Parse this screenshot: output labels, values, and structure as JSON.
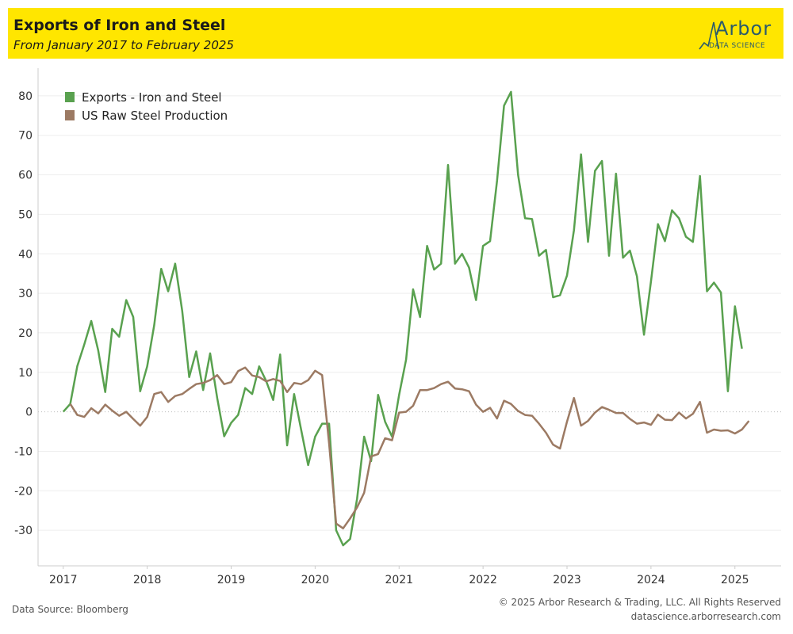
{
  "header": {
    "title": "Exports of Iron and Steel",
    "subtitle": "From January 2017 to February 2025",
    "logo_name": "Arbor",
    "logo_sub": "DATA SCIENCE",
    "background_color": "#ffe600"
  },
  "footer": {
    "source": "Data Source: Bloomberg",
    "copyright": "© 2025 Arbor Research & Trading, LLC. All Rights Reserved",
    "website": "datascience.arborresearch.com"
  },
  "chart_data": {
    "type": "line",
    "title": "Exports of Iron and Steel",
    "subtitle": "From January 2017 to February 2025",
    "xlabel": "",
    "ylabel": "",
    "x_ticks": [
      "2017",
      "2018",
      "2019",
      "2020",
      "2021",
      "2022",
      "2023",
      "2024",
      "2025"
    ],
    "y_ticks": [
      -30,
      -20,
      -10,
      0,
      10,
      20,
      30,
      40,
      50,
      60,
      70,
      80
    ],
    "ylim": [
      -39,
      87
    ],
    "xlim": [
      2016.7,
      2025.55
    ],
    "grid": true,
    "zero_line": "dotted",
    "legend_position": "top-left",
    "series": [
      {
        "name": "Exports - Iron and Steel",
        "color": "#59a14f",
        "points": [
          [
            "2017-01",
            0
          ],
          [
            "2017-02",
            2
          ],
          [
            "2017-03",
            11.5
          ],
          [
            "2017-04",
            17
          ],
          [
            "2017-05",
            23
          ],
          [
            "2017-06",
            15.5
          ],
          [
            "2017-07",
            5
          ],
          [
            "2017-08",
            21
          ],
          [
            "2017-09",
            19
          ],
          [
            "2017-10",
            28.3
          ],
          [
            "2017-11",
            24
          ],
          [
            "2017-12",
            5.2
          ],
          [
            "2018-01",
            11.5
          ],
          [
            "2018-02",
            22
          ],
          [
            "2018-03",
            36.2
          ],
          [
            "2018-04",
            30.5
          ],
          [
            "2018-05",
            37.5
          ],
          [
            "2018-06",
            25.5
          ],
          [
            "2018-07",
            8.8
          ],
          [
            "2018-08",
            15.3
          ],
          [
            "2018-09",
            5.5
          ],
          [
            "2018-10",
            14.8
          ],
          [
            "2018-11",
            3.5
          ],
          [
            "2018-12",
            -6.2
          ],
          [
            "2019-01",
            -2.8
          ],
          [
            "2019-02",
            -0.8
          ],
          [
            "2019-03",
            6
          ],
          [
            "2019-04",
            4.5
          ],
          [
            "2019-05",
            11.5
          ],
          [
            "2019-06",
            7.8
          ],
          [
            "2019-07",
            3
          ],
          [
            "2019-08",
            14.5
          ],
          [
            "2019-09",
            -8.5
          ],
          [
            "2019-10",
            4.5
          ],
          [
            "2019-11",
            -4.5
          ],
          [
            "2019-12",
            -13.5
          ],
          [
            "2020-01",
            -6.3
          ],
          [
            "2020-02",
            -3
          ],
          [
            "2020-03",
            -3
          ],
          [
            "2020-04",
            -30
          ],
          [
            "2020-05",
            -33.8
          ],
          [
            "2020-06",
            -32.2
          ],
          [
            "2020-07",
            -22
          ],
          [
            "2020-08",
            -6.3
          ],
          [
            "2020-09",
            -12.5
          ],
          [
            "2020-10",
            4.3
          ],
          [
            "2020-11",
            -2.5
          ],
          [
            "2020-12",
            -6.3
          ],
          [
            "2021-01",
            4.3
          ],
          [
            "2021-02",
            13.2
          ],
          [
            "2021-03",
            31
          ],
          [
            "2021-04",
            24
          ],
          [
            "2021-05",
            42
          ],
          [
            "2021-06",
            36
          ],
          [
            "2021-07",
            37.5
          ],
          [
            "2021-08",
            62.5
          ],
          [
            "2021-09",
            37.5
          ],
          [
            "2021-10",
            40
          ],
          [
            "2021-11",
            36.5
          ],
          [
            "2021-12",
            28.3
          ],
          [
            "2022-01",
            42
          ],
          [
            "2022-02",
            43.2
          ],
          [
            "2022-03",
            58.5
          ],
          [
            "2022-04",
            77.5
          ],
          [
            "2022-05",
            81
          ],
          [
            "2022-06",
            60
          ],
          [
            "2022-07",
            49
          ],
          [
            "2022-08",
            48.8
          ],
          [
            "2022-09",
            39.5
          ],
          [
            "2022-10",
            41
          ],
          [
            "2022-11",
            29
          ],
          [
            "2022-12",
            29.5
          ],
          [
            "2023-01",
            34.5
          ],
          [
            "2023-02",
            46
          ],
          [
            "2023-03",
            65.2
          ],
          [
            "2023-04",
            43
          ],
          [
            "2023-05",
            61
          ],
          [
            "2023-06",
            63.5
          ],
          [
            "2023-07",
            39.5
          ],
          [
            "2023-08",
            60.3
          ],
          [
            "2023-09",
            39
          ],
          [
            "2023-10",
            40.8
          ],
          [
            "2023-11",
            34.3
          ],
          [
            "2023-12",
            19.5
          ],
          [
            "2024-01",
            33
          ],
          [
            "2024-02",
            47.5
          ],
          [
            "2024-03",
            43.2
          ],
          [
            "2024-04",
            51
          ],
          [
            "2024-05",
            49
          ],
          [
            "2024-06",
            44.3
          ],
          [
            "2024-07",
            43
          ],
          [
            "2024-08",
            59.7
          ],
          [
            "2024-09",
            30.5
          ],
          [
            "2024-10",
            32.7
          ],
          [
            "2024-11",
            30.2
          ],
          [
            "2024-12",
            5.2
          ],
          [
            "2025-01",
            26.7
          ],
          [
            "2025-02",
            16
          ]
        ]
      },
      {
        "name": "US Raw Steel Production",
        "color": "#9c7a63",
        "points": [
          [
            "2017-02",
            2
          ],
          [
            "2017-03",
            -0.8
          ],
          [
            "2017-04",
            -1.3
          ],
          [
            "2017-05",
            0.9
          ],
          [
            "2017-06",
            -0.4
          ],
          [
            "2017-07",
            1.8
          ],
          [
            "2017-08",
            0.3
          ],
          [
            "2017-09",
            -1
          ],
          [
            "2017-10",
            0
          ],
          [
            "2017-11",
            -1.8
          ],
          [
            "2017-12",
            -3.5
          ],
          [
            "2018-01",
            -1.3
          ],
          [
            "2018-02",
            4.5
          ],
          [
            "2018-03",
            5
          ],
          [
            "2018-04",
            2.5
          ],
          [
            "2018-05",
            4
          ],
          [
            "2018-06",
            4.5
          ],
          [
            "2018-07",
            5.8
          ],
          [
            "2018-08",
            7
          ],
          [
            "2018-09",
            7.3
          ],
          [
            "2018-10",
            8
          ],
          [
            "2018-11",
            9.3
          ],
          [
            "2018-12",
            7
          ],
          [
            "2019-01",
            7.5
          ],
          [
            "2019-02",
            10.3
          ],
          [
            "2019-03",
            11.2
          ],
          [
            "2019-04",
            9.2
          ],
          [
            "2019-05",
            8.8
          ],
          [
            "2019-06",
            7.7
          ],
          [
            "2019-07",
            8.3
          ],
          [
            "2019-08",
            7.8
          ],
          [
            "2019-09",
            5
          ],
          [
            "2019-10",
            7.3
          ],
          [
            "2019-11",
            7
          ],
          [
            "2019-12",
            8
          ],
          [
            "2020-01",
            10.4
          ],
          [
            "2020-02",
            9.3
          ],
          [
            "2020-03",
            -8
          ],
          [
            "2020-04",
            -28.3
          ],
          [
            "2020-05",
            -29.5
          ],
          [
            "2020-06",
            -27
          ],
          [
            "2020-07",
            -24.2
          ],
          [
            "2020-08",
            -20.5
          ],
          [
            "2020-09",
            -11.3
          ],
          [
            "2020-10",
            -10.7
          ],
          [
            "2020-11",
            -6.7
          ],
          [
            "2020-12",
            -7.2
          ],
          [
            "2021-01",
            -0.2
          ],
          [
            "2021-02",
            0
          ],
          [
            "2021-03",
            1.5
          ],
          [
            "2021-04",
            5.5
          ],
          [
            "2021-05",
            5.5
          ],
          [
            "2021-06",
            6
          ],
          [
            "2021-07",
            7
          ],
          [
            "2021-08",
            7.6
          ],
          [
            "2021-09",
            5.9
          ],
          [
            "2021-10",
            5.7
          ],
          [
            "2021-11",
            5.2
          ],
          [
            "2021-12",
            1.8
          ],
          [
            "2022-01",
            0
          ],
          [
            "2022-02",
            1
          ],
          [
            "2022-03",
            -1.7
          ],
          [
            "2022-04",
            2.8
          ],
          [
            "2022-05",
            2
          ],
          [
            "2022-06",
            0.2
          ],
          [
            "2022-07",
            -0.8
          ],
          [
            "2022-08",
            -1
          ],
          [
            "2022-09",
            -3
          ],
          [
            "2022-10",
            -5.3
          ],
          [
            "2022-11",
            -8.3
          ],
          [
            "2022-12",
            -9.3
          ],
          [
            "2023-01",
            -2.5
          ],
          [
            "2023-02",
            3.5
          ],
          [
            "2023-03",
            -3.5
          ],
          [
            "2023-04",
            -2.3
          ],
          [
            "2023-05",
            -0.2
          ],
          [
            "2023-06",
            1.2
          ],
          [
            "2023-07",
            0.5
          ],
          [
            "2023-08",
            -0.3
          ],
          [
            "2023-09",
            -0.3
          ],
          [
            "2023-10",
            -1.8
          ],
          [
            "2023-11",
            -3
          ],
          [
            "2023-12",
            -2.7
          ],
          [
            "2024-01",
            -3.3
          ],
          [
            "2024-02",
            -0.7
          ],
          [
            "2024-03",
            -2
          ],
          [
            "2024-04",
            -2.1
          ],
          [
            "2024-05",
            -0.2
          ],
          [
            "2024-06",
            -1.7
          ],
          [
            "2024-07",
            -0.5
          ],
          [
            "2024-08",
            2.5
          ],
          [
            "2024-09",
            -5.3
          ],
          [
            "2024-10",
            -4.5
          ],
          [
            "2024-11",
            -4.8
          ],
          [
            "2024-12",
            -4.7
          ],
          [
            "2025-01",
            -5.5
          ],
          [
            "2025-02",
            -4.5
          ],
          [
            "2025-03",
            -2.3
          ]
        ]
      }
    ]
  }
}
